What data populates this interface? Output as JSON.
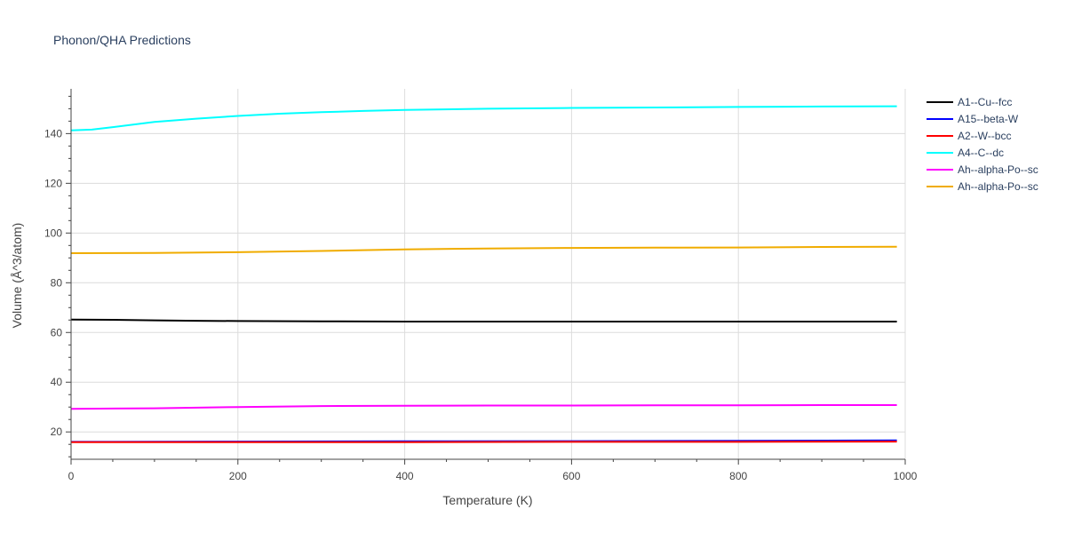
{
  "chart_data": {
    "type": "line",
    "title": "Phonon/QHA Predictions",
    "xlabel": "Temperature (K)",
    "ylabel": "Volume (Å^3/atom)",
    "xlim": [
      0,
      1000
    ],
    "ylim": [
      9,
      158
    ],
    "xticks": [
      0,
      200,
      400,
      600,
      800,
      1000
    ],
    "yticks": [
      20,
      40,
      60,
      80,
      100,
      120,
      140
    ],
    "grid": true,
    "legend_position": "top-right",
    "series": [
      {
        "name": "A1--Cu--fcc",
        "color": "#000000",
        "x": [
          0,
          50,
          100,
          150,
          200,
          300,
          400,
          500,
          600,
          700,
          800,
          900,
          990
        ],
        "y": [
          65.2,
          65.1,
          64.9,
          64.7,
          64.6,
          64.5,
          64.4,
          64.4,
          64.4,
          64.4,
          64.4,
          64.4,
          64.4
        ]
      },
      {
        "name": "A15--beta-W",
        "color": "#0000ff",
        "x": [
          0,
          200,
          400,
          600,
          800,
          990
        ],
        "y": [
          16.0,
          16.1,
          16.2,
          16.3,
          16.4,
          16.6
        ]
      },
      {
        "name": "A2--W--bcc",
        "color": "#ff0000",
        "x": [
          0,
          200,
          400,
          600,
          800,
          990
        ],
        "y": [
          15.9,
          15.9,
          15.9,
          16.0,
          16.0,
          16.1
        ]
      },
      {
        "name": "A4--C--dc",
        "color": "#00ffff",
        "x": [
          0,
          25,
          50,
          100,
          150,
          200,
          250,
          300,
          350,
          400,
          500,
          600,
          700,
          800,
          900,
          990
        ],
        "y": [
          141.3,
          141.6,
          142.6,
          144.7,
          146.0,
          147.1,
          148.0,
          148.6,
          149.1,
          149.5,
          150.0,
          150.3,
          150.5,
          150.7,
          150.9,
          151.0
        ]
      },
      {
        "name": "Ah--alpha-Po--sc",
        "color": "#ff00ff",
        "x": [
          0,
          100,
          200,
          300,
          400,
          500,
          600,
          700,
          800,
          900,
          990
        ],
        "y": [
          29.3,
          29.5,
          30.0,
          30.4,
          30.5,
          30.6,
          30.6,
          30.7,
          30.7,
          30.8,
          30.8
        ]
      },
      {
        "name": "Ah--alpha-Po--sc",
        "color": "#f0ac00",
        "x": [
          0,
          100,
          200,
          300,
          400,
          500,
          600,
          700,
          800,
          900,
          990
        ],
        "y": [
          91.9,
          92.0,
          92.3,
          92.8,
          93.4,
          93.8,
          94.0,
          94.1,
          94.2,
          94.4,
          94.5
        ]
      }
    ]
  }
}
